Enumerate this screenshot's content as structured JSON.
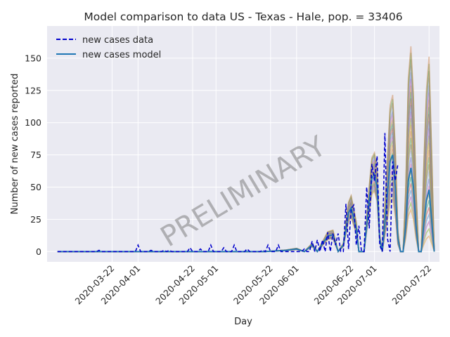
{
  "chart_data": {
    "type": "line",
    "title": "Model comparison to data US - Texas - Hale, pop. = 33406",
    "xlabel": "Day",
    "ylabel": "Number of new cases reported",
    "watermark": "PRELIMINARY",
    "x_start": "2020-03-01",
    "x_end": "2020-07-22",
    "xlim_days": [
      -4,
      147
    ],
    "ylim": [
      -8,
      175
    ],
    "yticks": [
      0,
      25,
      50,
      75,
      100,
      125,
      150
    ],
    "xticks": [
      {
        "day": 21,
        "label": "2020-03-22"
      },
      {
        "day": 31,
        "label": "2020-04-01"
      },
      {
        "day": 52,
        "label": "2020-04-22"
      },
      {
        "day": 61,
        "label": "2020-05-01"
      },
      {
        "day": 82,
        "label": "2020-05-22"
      },
      {
        "day": 92,
        "label": "2020-06-01"
      },
      {
        "day": 113,
        "label": "2020-06-22"
      },
      {
        "day": 122,
        "label": "2020-07-01"
      },
      {
        "day": 143,
        "label": "2020-07-22"
      }
    ],
    "legend": {
      "position": "top-left",
      "entries": [
        {
          "label": "new cases data",
          "style": "dashed",
          "color": "#0000cc"
        },
        {
          "label": "new cases model",
          "style": "solid",
          "color": "#1f77b4"
        }
      ]
    },
    "series": [
      {
        "name": "new cases data",
        "points": [
          [
            0,
            0
          ],
          [
            15,
            0
          ],
          [
            16,
            1
          ],
          [
            17,
            0
          ],
          [
            30,
            0
          ],
          [
            31,
            5
          ],
          [
            32,
            0
          ],
          [
            35,
            0
          ],
          [
            36,
            1
          ],
          [
            37,
            0
          ],
          [
            40,
            0
          ],
          [
            41,
            1
          ],
          [
            42,
            0
          ],
          [
            43,
            1
          ],
          [
            44,
            0
          ],
          [
            50,
            0
          ],
          [
            51,
            3
          ],
          [
            52,
            0
          ],
          [
            54,
            0
          ],
          [
            55,
            2
          ],
          [
            56,
            0
          ],
          [
            58,
            0
          ],
          [
            59,
            5
          ],
          [
            60,
            0
          ],
          [
            63,
            0
          ],
          [
            64,
            3
          ],
          [
            65,
            0
          ],
          [
            67,
            0
          ],
          [
            68,
            5
          ],
          [
            69,
            0
          ],
          [
            72,
            0
          ],
          [
            73,
            2
          ],
          [
            74,
            0
          ],
          [
            78,
            0
          ],
          [
            79,
            1
          ],
          [
            80,
            0
          ],
          [
            81,
            5
          ],
          [
            82,
            0
          ],
          [
            84,
            0
          ],
          [
            85,
            5
          ],
          [
            86,
            0
          ],
          [
            94,
            0
          ],
          [
            95,
            2
          ],
          [
            96,
            0
          ],
          [
            97,
            0
          ],
          [
            98,
            8
          ],
          [
            99,
            0
          ],
          [
            100,
            9
          ],
          [
            101,
            0
          ],
          [
            102,
            9
          ],
          [
            103,
            0
          ],
          [
            104,
            15
          ],
          [
            105,
            0
          ],
          [
            106,
            14
          ],
          [
            107,
            5
          ],
          [
            108,
            14
          ],
          [
            109,
            0
          ],
          [
            110,
            0
          ],
          [
            111,
            37
          ],
          [
            112,
            2
          ],
          [
            113,
            33
          ],
          [
            114,
            36
          ],
          [
            115,
            5
          ],
          [
            116,
            20
          ],
          [
            117,
            0
          ],
          [
            118,
            0
          ],
          [
            119,
            50
          ],
          [
            120,
            18
          ],
          [
            121,
            68
          ],
          [
            122,
            55
          ],
          [
            123,
            74
          ],
          [
            124,
            5
          ],
          [
            125,
            0
          ],
          [
            126,
            92
          ],
          [
            127,
            10
          ],
          [
            128,
            0
          ],
          [
            129,
            70
          ],
          [
            130,
            55
          ],
          [
            131,
            68
          ]
        ]
      },
      {
        "name": "new cases model",
        "points": [
          [
            0,
            0
          ],
          [
            10,
            0
          ],
          [
            20,
            0
          ],
          [
            30,
            0
          ],
          [
            40,
            0
          ],
          [
            50,
            0
          ],
          [
            60,
            0
          ],
          [
            70,
            0
          ],
          [
            80,
            0
          ],
          [
            88,
            1
          ],
          [
            92,
            2
          ],
          [
            95,
            0
          ],
          [
            98,
            5
          ],
          [
            100,
            0
          ],
          [
            104,
            12
          ],
          [
            106,
            13
          ],
          [
            108,
            0
          ],
          [
            110,
            5
          ],
          [
            112,
            30
          ],
          [
            113,
            34
          ],
          [
            115,
            18
          ],
          [
            116,
            0
          ],
          [
            118,
            0
          ],
          [
            120,
            40
          ],
          [
            121,
            57
          ],
          [
            122,
            60
          ],
          [
            123,
            50
          ],
          [
            124,
            10
          ],
          [
            125,
            0
          ],
          [
            127,
            45
          ],
          [
            128,
            70
          ],
          [
            129,
            75
          ],
          [
            130,
            50
          ],
          [
            131,
            10
          ],
          [
            132,
            0
          ],
          [
            133,
            0
          ],
          [
            134,
            20
          ],
          [
            135,
            55
          ],
          [
            136,
            65
          ],
          [
            137,
            50
          ],
          [
            138,
            20
          ],
          [
            139,
            0
          ],
          [
            140,
            0
          ],
          [
            141,
            22
          ],
          [
            142,
            40
          ],
          [
            143,
            48
          ],
          [
            144,
            25
          ],
          [
            145,
            0
          ]
        ]
      }
    ]
  }
}
